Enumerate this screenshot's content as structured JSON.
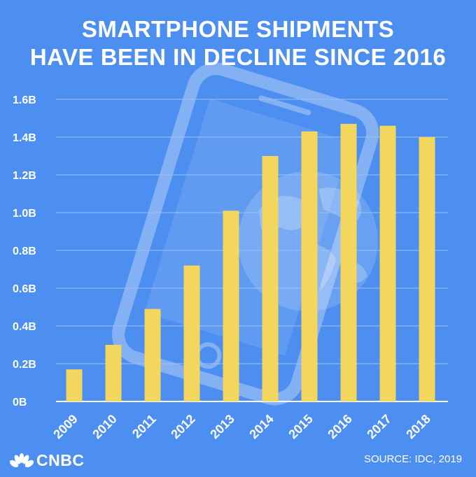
{
  "chart_data": {
    "type": "bar",
    "title_lines": [
      "SMARTPHONE SHIPMENTS",
      "HAVE BEEN IN DECLINE SINCE 2016"
    ],
    "categories": [
      "2009",
      "2010",
      "2011",
      "2012",
      "2013",
      "2014",
      "2015",
      "2016",
      "2017",
      "2018"
    ],
    "values": [
      0.17,
      0.3,
      0.49,
      0.72,
      1.01,
      1.3,
      1.43,
      1.47,
      1.46,
      1.4
    ],
    "yticks": [
      {
        "value": 0,
        "label": "0B"
      },
      {
        "value": 0.2,
        "label": "0.2B"
      },
      {
        "value": 0.4,
        "label": "0.4B"
      },
      {
        "value": 0.6,
        "label": "0.6B"
      },
      {
        "value": 0.8,
        "label": "0.8B"
      },
      {
        "value": 1.0,
        "label": "1.0B"
      },
      {
        "value": 1.2,
        "label": "1.2B"
      },
      {
        "value": 1.4,
        "label": "1.4B"
      },
      {
        "value": 1.6,
        "label": "1.6B"
      }
    ],
    "ylim": [
      0,
      1.6
    ],
    "grid": true,
    "bar_color": "#f2d65e",
    "grid_color": "#9cc0f7",
    "background_color": "#4d8ff0"
  },
  "footer": {
    "source": "SOURCE: IDC, 2019",
    "brand": "CNBC",
    "brand_icon": "peacock-icon"
  },
  "decoration": {
    "icons": [
      "smartphone-icon",
      "globe-icon"
    ]
  }
}
